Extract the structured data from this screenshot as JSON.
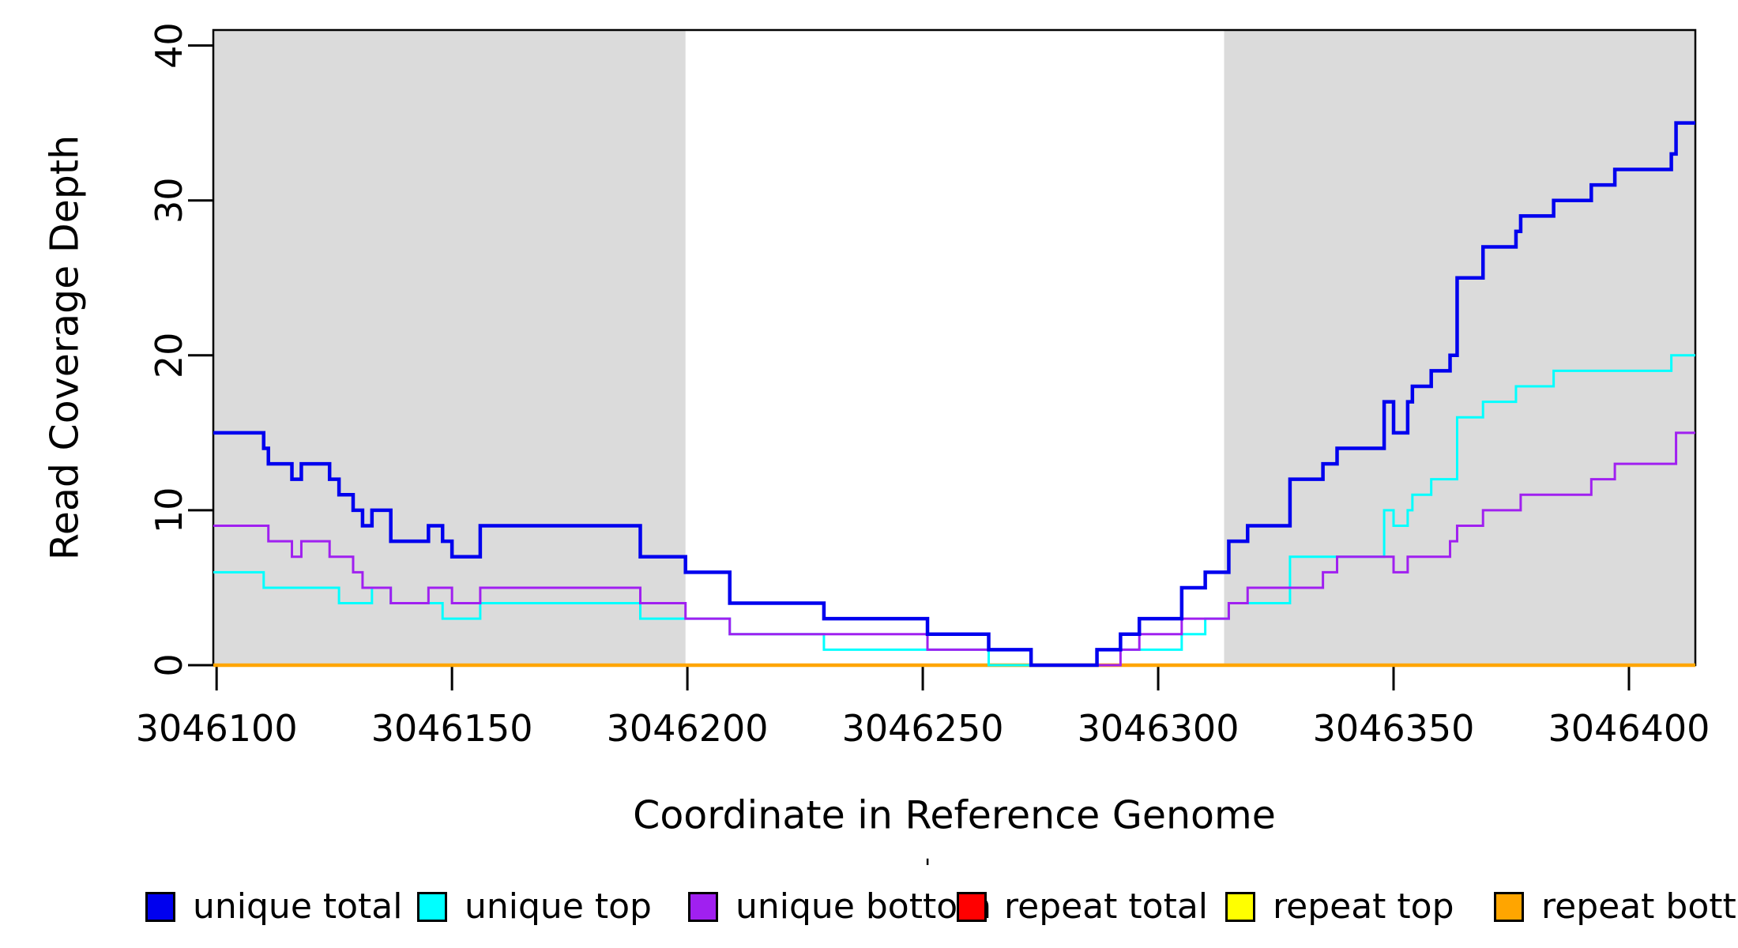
{
  "chart_data": {
    "type": "line",
    "subtype": "step",
    "title": "",
    "xlabel": "Coordinate in Reference Genome",
    "ylabel": "Read Coverage Depth",
    "x_ticks": [
      3046100,
      3046150,
      3046200,
      3046250,
      3046300,
      3046350,
      3046400
    ],
    "y_ticks": [
      0,
      10,
      20,
      30,
      40
    ],
    "x_range": [
      3046099.3,
      3046414.1
    ],
    "y_range": [
      0,
      41
    ],
    "grid": false,
    "legend_position": "bottom",
    "shade_color": "#DBDBDB",
    "shaded_regions": [
      {
        "x_start": 3046099.3,
        "x_end": 3046199.6
      },
      {
        "x_start": 3046314.0,
        "x_end": 3046414.1
      }
    ],
    "series": [
      {
        "name": "unique total",
        "color": "#0000EE",
        "width": 4.5,
        "z": 6,
        "points": [
          [
            3046099.3,
            15
          ],
          [
            3046110,
            14
          ],
          [
            3046111,
            13
          ],
          [
            3046116,
            12
          ],
          [
            3046118,
            13
          ],
          [
            3046124,
            12
          ],
          [
            3046126,
            11
          ],
          [
            3046129,
            10
          ],
          [
            3046131,
            9
          ],
          [
            3046133,
            10
          ],
          [
            3046137,
            8
          ],
          [
            3046145,
            9
          ],
          [
            3046148,
            8
          ],
          [
            3046150,
            7
          ],
          [
            3046156,
            9
          ],
          [
            3046190,
            7
          ],
          [
            3046199.6,
            6
          ],
          [
            3046209,
            4
          ],
          [
            3046229,
            3
          ],
          [
            3046251,
            2
          ],
          [
            3046264,
            1
          ],
          [
            3046273,
            0
          ],
          [
            3046287,
            1
          ],
          [
            3046292,
            2
          ],
          [
            3046296,
            3
          ],
          [
            3046305,
            5
          ],
          [
            3046310,
            6
          ],
          [
            3046315,
            8
          ],
          [
            3046319,
            9
          ],
          [
            3046328,
            12
          ],
          [
            3046335,
            13
          ],
          [
            3046338,
            14
          ],
          [
            3046348,
            17
          ],
          [
            3046350,
            15
          ],
          [
            3046353,
            17
          ],
          [
            3046354,
            18
          ],
          [
            3046358,
            19
          ],
          [
            3046362,
            20
          ],
          [
            3046363.5,
            25
          ],
          [
            3046369,
            27
          ],
          [
            3046376,
            28
          ],
          [
            3046377,
            29
          ],
          [
            3046384,
            30
          ],
          [
            3046392,
            31
          ],
          [
            3046397,
            32
          ],
          [
            3046409,
            33
          ],
          [
            3046410,
            35
          ]
        ]
      },
      {
        "name": "unique top",
        "color": "#00FFFF",
        "width": 3,
        "z": 4,
        "points": [
          [
            3046099.3,
            6
          ],
          [
            3046110,
            5
          ],
          [
            3046126,
            4
          ],
          [
            3046133,
            5
          ],
          [
            3046137,
            4
          ],
          [
            3046148,
            3
          ],
          [
            3046156,
            4
          ],
          [
            3046190,
            3
          ],
          [
            3046209,
            2
          ],
          [
            3046229,
            1
          ],
          [
            3046264,
            0
          ],
          [
            3046287,
            1
          ],
          [
            3046305,
            2
          ],
          [
            3046310,
            3
          ],
          [
            3046315,
            4
          ],
          [
            3046328,
            7
          ],
          [
            3046348,
            10
          ],
          [
            3046350,
            9
          ],
          [
            3046353,
            10
          ],
          [
            3046354,
            11
          ],
          [
            3046358,
            12
          ],
          [
            3046363.5,
            16
          ],
          [
            3046369,
            17
          ],
          [
            3046376,
            18
          ],
          [
            3046384,
            19
          ],
          [
            3046409,
            20
          ]
        ]
      },
      {
        "name": "unique bottom",
        "color": "#A020F0",
        "width": 3,
        "z": 5,
        "points": [
          [
            3046099.3,
            9
          ],
          [
            3046111,
            8
          ],
          [
            3046116,
            7
          ],
          [
            3046118,
            8
          ],
          [
            3046124,
            7
          ],
          [
            3046129,
            6
          ],
          [
            3046131,
            5
          ],
          [
            3046137,
            4
          ],
          [
            3046145,
            5
          ],
          [
            3046150,
            4
          ],
          [
            3046156,
            5
          ],
          [
            3046190,
            4
          ],
          [
            3046199.6,
            3
          ],
          [
            3046209,
            2
          ],
          [
            3046251,
            1
          ],
          [
            3046273,
            0
          ],
          [
            3046292,
            1
          ],
          [
            3046296,
            2
          ],
          [
            3046305,
            3
          ],
          [
            3046315,
            4
          ],
          [
            3046319,
            5
          ],
          [
            3046335,
            6
          ],
          [
            3046338,
            7
          ],
          [
            3046350,
            6
          ],
          [
            3046353,
            7
          ],
          [
            3046362,
            8
          ],
          [
            3046363.5,
            9
          ],
          [
            3046369,
            10
          ],
          [
            3046377,
            11
          ],
          [
            3046392,
            12
          ],
          [
            3046397,
            13
          ],
          [
            3046410,
            15
          ]
        ]
      },
      {
        "name": "repeat total",
        "color": "#FF0000",
        "width": 3,
        "z": 1,
        "points": [
          [
            3046099.3,
            0
          ]
        ]
      },
      {
        "name": "repeat top",
        "color": "#FFFF00",
        "width": 3,
        "z": 2,
        "points": [
          [
            3046099.3,
            0
          ]
        ]
      },
      {
        "name": "repeat bottom",
        "color": "#FFA500",
        "width": 4.5,
        "z": 3,
        "points": [
          [
            3046099.3,
            0
          ]
        ]
      }
    ]
  },
  "legend": {
    "stray_mark": "'",
    "items": [
      {
        "label": "unique total",
        "color": "#0000EE"
      },
      {
        "label": "unique top",
        "color": "#00FFFF"
      },
      {
        "label": "unique bottom",
        "color": "#A020F0"
      },
      {
        "label": "repeat total",
        "color": "#FF0000"
      },
      {
        "label": "repeat top",
        "color": "#FFFF00"
      },
      {
        "label": "repeat bottom",
        "color": "#FFA500"
      }
    ]
  }
}
